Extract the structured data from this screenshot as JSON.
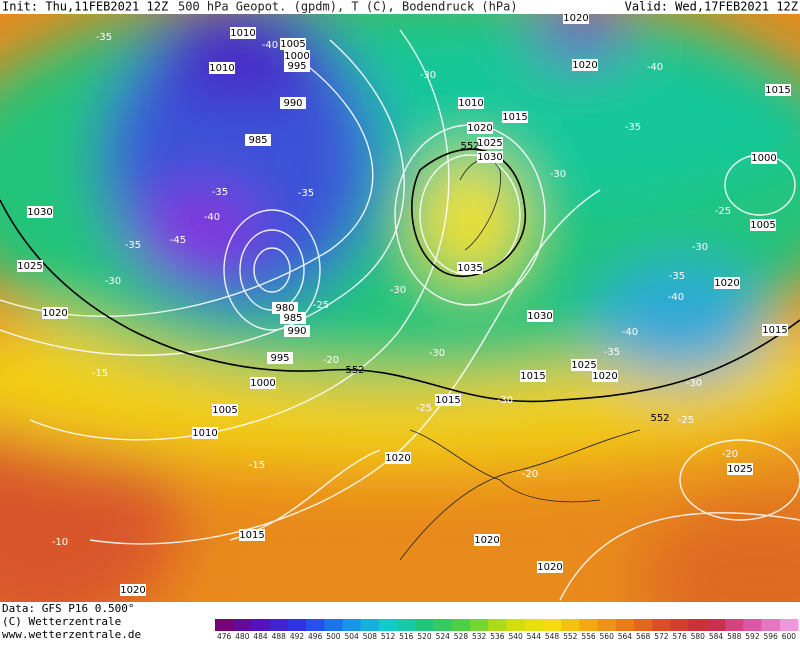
{
  "header": {
    "init": "Init: Thu,11FEB2021 12Z",
    "title": "500 hPa Geopot. (gpdm), T (C), Bodendruck (hPa)",
    "valid": "Valid: Wed,17FEB2021 12Z"
  },
  "footer": {
    "data": "Data: GFS P16 0.500°",
    "copyright": "(C) Wetterzentrale",
    "url": "www.wetterzentrale.de"
  },
  "legend": {
    "values": [
      476,
      480,
      484,
      488,
      492,
      496,
      500,
      504,
      508,
      512,
      516,
      520,
      524,
      528,
      532,
      536,
      540,
      544,
      548,
      552,
      556,
      560,
      564,
      568,
      572,
      576,
      580,
      584,
      588,
      592,
      596,
      600
    ]
  },
  "map": {
    "pressure_labels": [
      "1010",
      "1005",
      "1000",
      "995",
      "1010",
      "990",
      "985",
      "1030",
      "1025",
      "1020",
      "980",
      "985",
      "990",
      "995",
      "1000",
      "1005",
      "1010",
      "1015",
      "1020",
      "1020",
      "1020",
      "1020",
      "1015",
      "1015",
      "1025",
      "1020",
      "1030",
      "1035",
      "1030",
      "1025",
      "1020",
      "1010",
      "1015",
      "1020",
      "1020",
      "1015",
      "1000",
      "1005",
      "1020",
      "1015",
      "1025"
    ],
    "temperature_labels": [
      "-35",
      "-40",
      "-30",
      "-40",
      "-35",
      "-30",
      "-35",
      "-35",
      "-40",
      "-45",
      "-35",
      "-30",
      "-25",
      "-30",
      "-35",
      "-40",
      "-30",
      "-25",
      "-40",
      "-35",
      "-30",
      "-20",
      "-30",
      "-25",
      "-30",
      "-25",
      "-15",
      "-20",
      "-20",
      "-15",
      "-10"
    ],
    "geopotential_labels": [
      "552",
      "552",
      "552"
    ]
  }
}
